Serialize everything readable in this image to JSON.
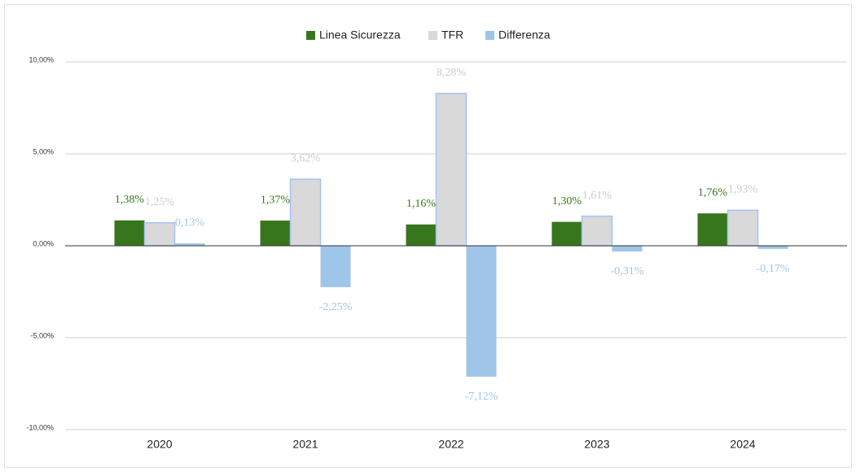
{
  "chart_data": {
    "type": "bar",
    "categories": [
      "2020",
      "2021",
      "2022",
      "2023",
      "2024"
    ],
    "series": [
      {
        "name": "Linea Sicurezza",
        "color": "#38761d",
        "label_color": "#38761d",
        "values": [
          1.38,
          1.37,
          1.16,
          1.3,
          1.76
        ],
        "value_labels": [
          "1,38%",
          "1,37%",
          "1,16%",
          "1,30%",
          "1,76%"
        ]
      },
      {
        "name": "TFR",
        "color": "#d9d9d9",
        "label_color": "#cccccc",
        "values": [
          1.25,
          3.62,
          8.28,
          1.61,
          1.93
        ],
        "value_labels": [
          "1,25%",
          "3,62%",
          "8,28%",
          "1,61%",
          "1,93%"
        ]
      },
      {
        "name": "Differenza",
        "color": "#9fc5e8",
        "label_color": "#9fc5e8",
        "values": [
          0.13,
          -2.25,
          -7.12,
          -0.31,
          -0.17
        ],
        "value_labels": [
          "0,13%",
          "-2,25%",
          "-7,12%",
          "-0,31%",
          "-0,17%"
        ]
      }
    ],
    "ylim": [
      -10,
      10
    ],
    "yticks": [
      {
        "value": -10,
        "label": "-10,00%"
      },
      {
        "value": -5,
        "label": "-5,00%"
      },
      {
        "value": 0,
        "label": "0,00%"
      },
      {
        "value": 5,
        "label": "5,00%"
      },
      {
        "value": 10,
        "label": "10,00%"
      }
    ],
    "grid": true,
    "legend": "top"
  }
}
